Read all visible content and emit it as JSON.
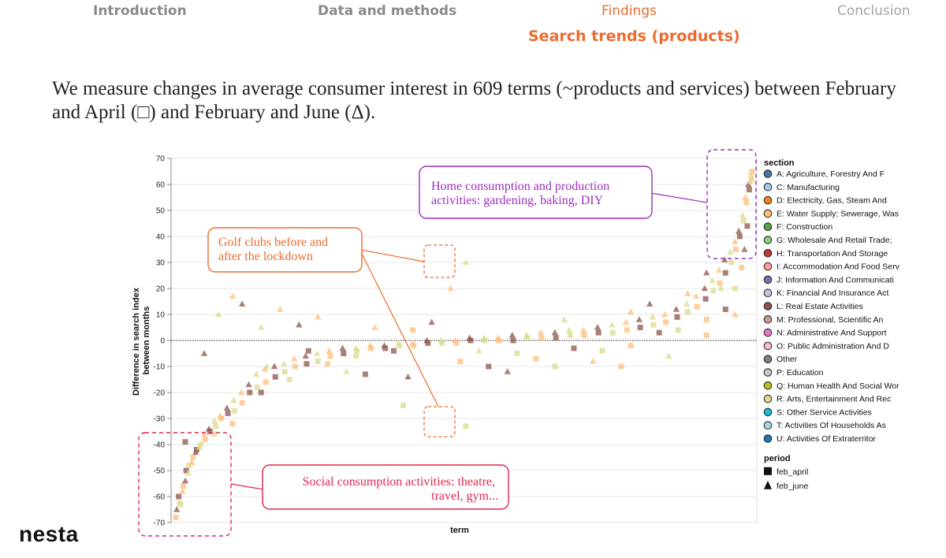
{
  "nav": {
    "items": [
      {
        "label": "Introduction",
        "state": "done"
      },
      {
        "label": "Data and methods",
        "state": "done"
      },
      {
        "label": "Findings",
        "state": "active"
      },
      {
        "label": "Conclusion",
        "state": "upcoming"
      }
    ],
    "subtitle": "Search trends (products)"
  },
  "intro_text": "We measure changes in average consumer interest in 609 terms (~products and services) between February and April (□) and February and June (Δ).",
  "logo": "nesta",
  "colors": {
    "accent": "#ee6a2d",
    "purple_annotation": "#9b2fc0",
    "orange_annotation": "#ee6a2d",
    "red_annotation": "#e3264e"
  },
  "annotations": {
    "home": "Home consumption and production activities: gardening, baking, DIY",
    "golf": "Golf clubs before and after the lockdown",
    "social": "Social consumption activities: theatre, travel, gym..."
  },
  "chart_data": {
    "type": "scatter",
    "xlabel": "term",
    "ylabel": "Difference in search index between months",
    "ylim": [
      -70,
      70
    ],
    "yticks": [
      70,
      60,
      50,
      40,
      30,
      20,
      10,
      0,
      -10,
      -20,
      -30,
      -40,
      -50,
      -60,
      -70
    ],
    "n_terms": 609,
    "grid": true,
    "legend_placement": "right",
    "legend": {
      "section_title": "section",
      "sections": [
        {
          "label": "A: Agriculture, Forestry And F",
          "color": "#4c78a8"
        },
        {
          "label": "C: Manufacturing",
          "color": "#9ecae9"
        },
        {
          "label": "D: Electricity, Gas, Steam And",
          "color": "#f58518"
        },
        {
          "label": "E: Water Supply; Sewerage, Was",
          "color": "#ffbf79"
        },
        {
          "label": "F: Construction",
          "color": "#54a24b"
        },
        {
          "label": "G: Wholesale And Retail Trade;",
          "color": "#88d27a"
        },
        {
          "label": "H: Transportation And Storage",
          "color": "#c2383a"
        },
        {
          "label": "I: Accommodation And Food Serv",
          "color": "#ff9d98"
        },
        {
          "label": "J: Information And Communicati",
          "color": "#7c6fb0"
        },
        {
          "label": "K: Financial And Insurance Act",
          "color": "#c7c1e0"
        },
        {
          "label": "L: Real Estate Activities",
          "color": "#8c564b"
        },
        {
          "label": "M: Professional, Scientific An",
          "color": "#c49c94"
        },
        {
          "label": "N: Administrative And Support",
          "color": "#e377c2"
        },
        {
          "label": "O: Public Administration And D",
          "color": "#f7b6d2"
        },
        {
          "label": "Other",
          "color": "#7f7f7f"
        },
        {
          "label": "P: Education",
          "color": "#c7c7c7"
        },
        {
          "label": "Q: Human Health And Social Wor",
          "color": "#bcbd22"
        },
        {
          "label": "R: Arts, Entertainment And Rec",
          "color": "#dbdb8d"
        },
        {
          "label": "S: Other Service Activities",
          "color": "#17becf"
        },
        {
          "label": "T: Activities Of Households As",
          "color": "#9edae5"
        },
        {
          "label": "U: Activities Of Extraterritor",
          "color": "#1f77b4"
        }
      ],
      "period_title": "period",
      "periods": [
        {
          "label": "feb_april",
          "shape": "square"
        },
        {
          "label": "feb_june",
          "shape": "triangle"
        }
      ]
    },
    "series": [
      {
        "name": "feb_april",
        "shape": "square",
        "points": [
          [
            0,
            -68
          ],
          [
            3,
            -60
          ],
          [
            5,
            -63
          ],
          [
            8,
            -56
          ],
          [
            11,
            -50
          ],
          [
            14,
            -48
          ],
          [
            18,
            -45
          ],
          [
            22,
            -42
          ],
          [
            26,
            -40
          ],
          [
            31,
            -38
          ],
          [
            36,
            -35
          ],
          [
            42,
            -33
          ],
          [
            48,
            -30
          ],
          [
            55,
            -28
          ],
          [
            62,
            -27
          ],
          [
            70,
            -24
          ],
          [
            78,
            -20
          ],
          [
            86,
            -18
          ],
          [
            95,
            -16
          ],
          [
            105,
            -14
          ],
          [
            115,
            -12
          ],
          [
            126,
            -10
          ],
          [
            138,
            -9
          ],
          [
            150,
            -8
          ],
          [
            163,
            -6
          ],
          [
            177,
            -5
          ],
          [
            191,
            -4
          ],
          [
            206,
            -3
          ],
          [
            221,
            -3
          ],
          [
            236,
            -2
          ],
          [
            251,
            -2
          ],
          [
            266,
            -1
          ],
          [
            281,
            -1
          ],
          [
            296,
            -1
          ],
          [
            311,
            0
          ],
          [
            326,
            0
          ],
          [
            341,
            0
          ],
          [
            356,
            0
          ],
          [
            371,
            1
          ],
          [
            386,
            1
          ],
          [
            401,
            1
          ],
          [
            416,
            2
          ],
          [
            431,
            2
          ],
          [
            446,
            3
          ],
          [
            461,
            3
          ],
          [
            476,
            4
          ],
          [
            490,
            5
          ],
          [
            504,
            6
          ],
          [
            517,
            7
          ],
          [
            529,
            9
          ],
          [
            540,
            11
          ],
          [
            550,
            13
          ],
          [
            559,
            16
          ],
          [
            567,
            19
          ],
          [
            574,
            22
          ],
          [
            580,
            26
          ],
          [
            586,
            30
          ],
          [
            591,
            35
          ],
          [
            595,
            40
          ],
          [
            599,
            46
          ],
          [
            602,
            53
          ],
          [
            605,
            58
          ],
          [
            607,
            63
          ],
          [
            608,
            65
          ],
          [
            10,
            -39
          ],
          [
            40,
            -36
          ],
          [
            60,
            -32
          ],
          [
            90,
            -20
          ],
          [
            120,
            -15
          ],
          [
            160,
            -9
          ],
          [
            200,
            -13
          ],
          [
            240,
            -25
          ],
          [
            300,
            -8
          ],
          [
            330,
            -10
          ],
          [
            360,
            -5
          ],
          [
            380,
            -7
          ],
          [
            420,
            -3
          ],
          [
            450,
            -4
          ],
          [
            480,
            -2
          ],
          [
            510,
            3
          ],
          [
            530,
            4
          ],
          [
            560,
            8
          ],
          [
            580,
            12
          ],
          [
            590,
            20
          ],
          [
            597,
            28
          ],
          [
            603,
            44
          ],
          [
            306,
            -33
          ],
          [
            250,
            4
          ],
          [
            140,
            -4
          ],
          [
            190,
            -6
          ],
          [
            470,
            -10
          ],
          [
            230,
            -4
          ],
          [
            400,
            -10
          ],
          [
            560,
            2
          ]
        ]
      },
      {
        "name": "feb_june",
        "shape": "triangle",
        "points": [
          [
            1,
            -65
          ],
          [
            4,
            -62
          ],
          [
            7,
            -58
          ],
          [
            10,
            -54
          ],
          [
            13,
            -51
          ],
          [
            17,
            -47
          ],
          [
            21,
            -43
          ],
          [
            25,
            -41
          ],
          [
            30,
            -36
          ],
          [
            35,
            -34
          ],
          [
            41,
            -31
          ],
          [
            47,
            -29
          ],
          [
            54,
            -26
          ],
          [
            61,
            -23
          ],
          [
            69,
            -20
          ],
          [
            77,
            -17
          ],
          [
            85,
            -13
          ],
          [
            94,
            -11
          ],
          [
            104,
            -10
          ],
          [
            114,
            -9
          ],
          [
            125,
            -7
          ],
          [
            137,
            -6
          ],
          [
            149,
            -5
          ],
          [
            162,
            -4
          ],
          [
            176,
            -3
          ],
          [
            190,
            -3
          ],
          [
            205,
            -2
          ],
          [
            220,
            -2
          ],
          [
            235,
            -1
          ],
          [
            250,
            -1
          ],
          [
            265,
            0
          ],
          [
            280,
            0
          ],
          [
            295,
            0
          ],
          [
            310,
            1
          ],
          [
            325,
            1
          ],
          [
            340,
            1
          ],
          [
            355,
            2
          ],
          [
            370,
            2
          ],
          [
            385,
            3
          ],
          [
            400,
            3
          ],
          [
            415,
            4
          ],
          [
            430,
            4
          ],
          [
            445,
            5
          ],
          [
            460,
            6
          ],
          [
            475,
            7
          ],
          [
            489,
            8
          ],
          [
            503,
            9
          ],
          [
            516,
            10
          ],
          [
            528,
            12
          ],
          [
            539,
            14
          ],
          [
            549,
            17
          ],
          [
            558,
            20
          ],
          [
            566,
            23
          ],
          [
            573,
            27
          ],
          [
            579,
            31
          ],
          [
            585,
            34
          ],
          [
            590,
            38
          ],
          [
            594,
            42
          ],
          [
            598,
            48
          ],
          [
            601,
            55
          ],
          [
            604,
            60
          ],
          [
            606,
            61
          ],
          [
            608,
            62
          ],
          [
            30,
            -5
          ],
          [
            45,
            10
          ],
          [
            60,
            17
          ],
          [
            70,
            14
          ],
          [
            90,
            5
          ],
          [
            110,
            12
          ],
          [
            130,
            6
          ],
          [
            180,
            -12
          ],
          [
            210,
            5
          ],
          [
            245,
            -14
          ],
          [
            306,
            30
          ],
          [
            290,
            20
          ],
          [
            350,
            -12
          ],
          [
            410,
            8
          ],
          [
            440,
            -8
          ],
          [
            500,
            14
          ],
          [
            520,
            -6
          ],
          [
            540,
            18
          ],
          [
            560,
            26
          ],
          [
            575,
            20
          ],
          [
            590,
            10
          ],
          [
            600,
            35
          ],
          [
            96,
            -10
          ],
          [
            150,
            9
          ],
          [
            270,
            7
          ],
          [
            320,
            -4
          ],
          [
            480,
            11
          ]
        ]
      }
    ]
  }
}
